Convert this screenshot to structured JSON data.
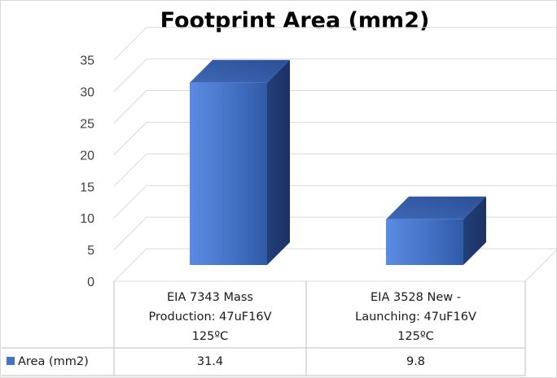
{
  "chart_data": {
    "type": "bar",
    "title": "Footprint Area (mm2)",
    "categories": [
      [
        "EIA 7343 Mass",
        "Production: 47uF16V",
        "125ºC"
      ],
      [
        "EIA 3528 New -",
        "Launching: 47uF16V",
        "125ºC"
      ]
    ],
    "series": [
      {
        "name": "Area (mm2)",
        "values": [
          31.4,
          9.8
        ],
        "color": "#4472C4"
      }
    ],
    "data_table": {
      "legend_label": "Area (mm2)",
      "values": [
        "31.4",
        "9.8"
      ]
    },
    "ylim": [
      0,
      35
    ],
    "y_ticks": [
      "0",
      "5",
      "10",
      "15",
      "20",
      "25",
      "30",
      "35"
    ],
    "grid": true,
    "legend": "in data table",
    "style": "3d-column"
  }
}
